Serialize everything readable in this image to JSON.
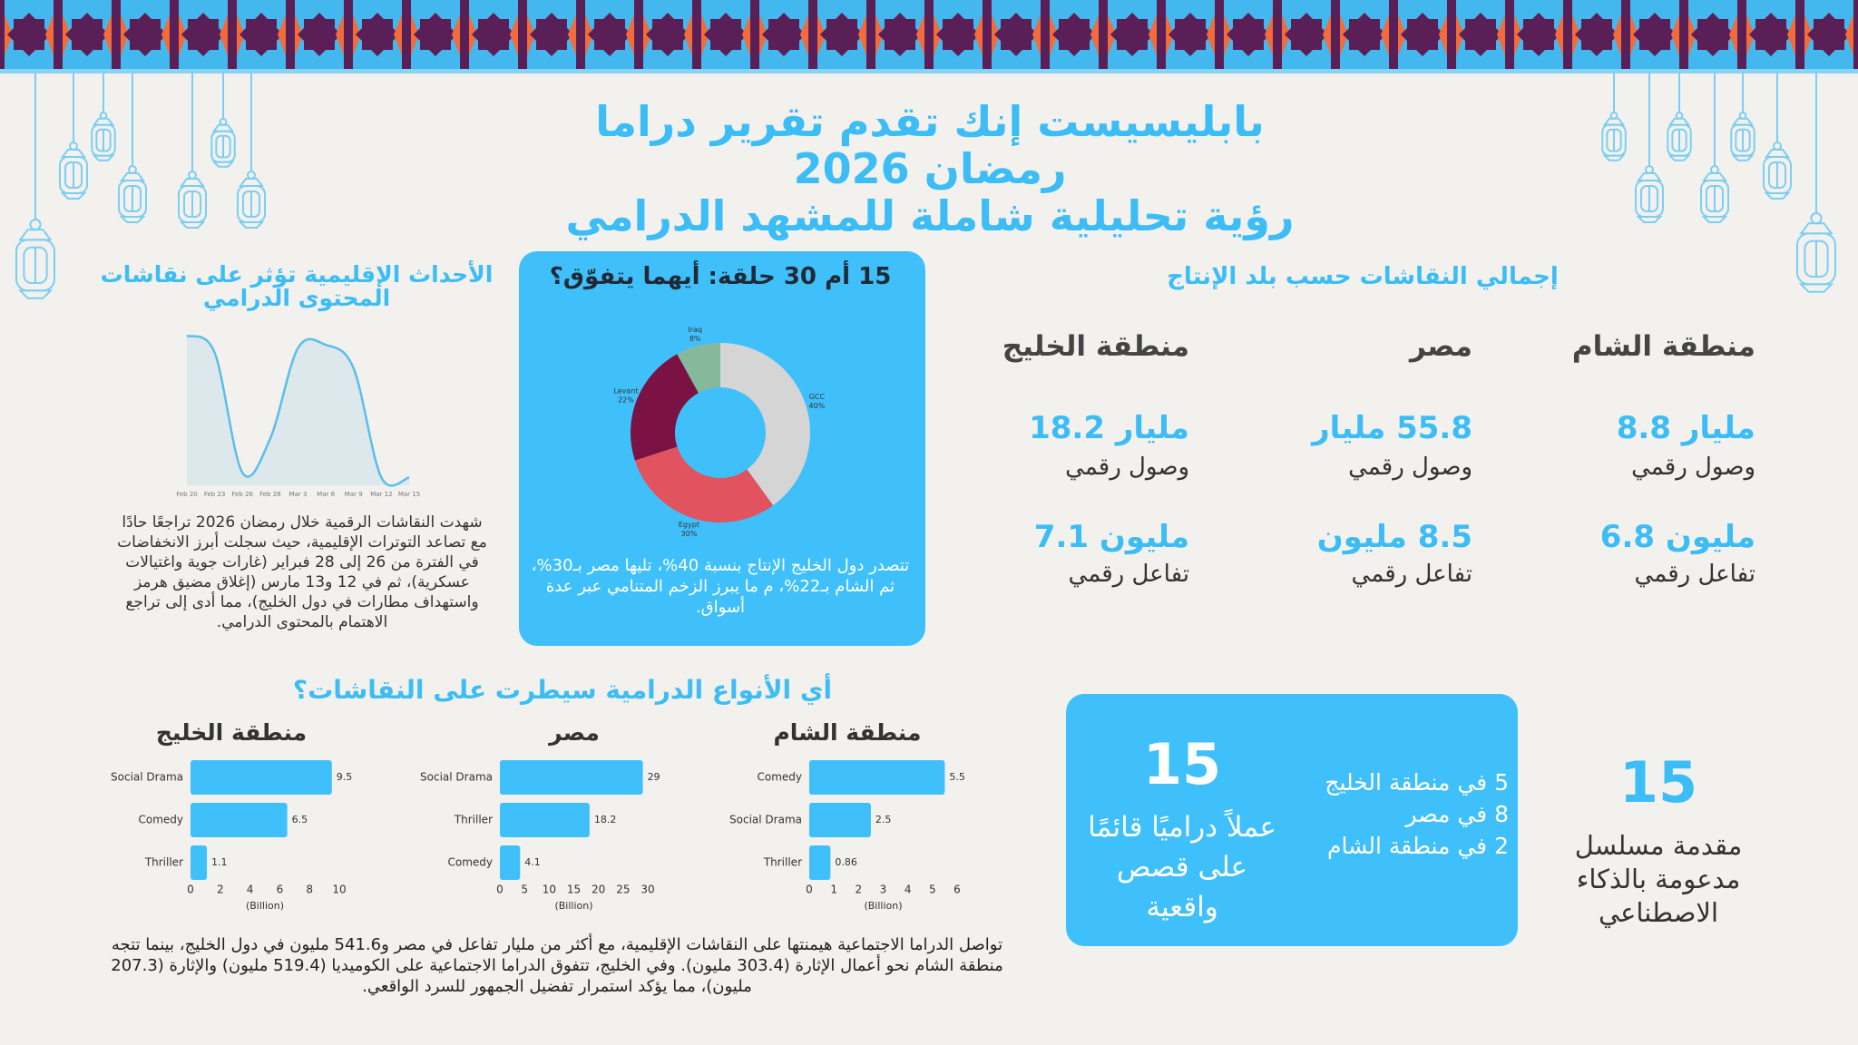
{
  "header": {
    "title_lines": [
      "بابليسيست إنك تقدم تقرير دراما",
      "رمضان 2026",
      "رؤية تحليلية شاملة للمشهد الدرامي"
    ]
  },
  "chart_data": [
    {
      "type": "area",
      "title": "الأحداث الإقليمية تؤثر على نقاشات المحتوى الدرامي",
      "x": [
        "Feb 20",
        "Feb 23",
        "Feb 26",
        "Feb 28",
        "Mar 3",
        "Mar 6",
        "Mar 9",
        "Mar 12",
        "Mar 15"
      ],
      "values": [
        96,
        85,
        8,
        30,
        88,
        90,
        75,
        5,
        5
      ],
      "ylim": [
        0,
        100
      ],
      "color": "#5bbfe8",
      "fill": "#dce8ec"
    },
    {
      "type": "pie",
      "donut": true,
      "title": "15 أم 30 حلقة: أيهما يتفوّق؟",
      "categories": [
        "GCC",
        "Egypt",
        "Levant",
        "Iraq"
      ],
      "values": [
        40,
        30,
        22,
        8
      ],
      "value_labels": [
        "40%",
        "30%",
        "22%",
        "8%"
      ],
      "colors": [
        "#d5d5d5",
        "#e0535f",
        "#7a1343",
        "#86b99b"
      ]
    },
    {
      "type": "barh",
      "title": "منطقة الشام",
      "categories": [
        "Comedy",
        "Social Drama",
        "Thriller"
      ],
      "values": [
        5.5,
        2.5,
        0.86
      ],
      "xlim": [
        0,
        6
      ],
      "xticks": [
        0,
        1,
        2,
        3,
        4,
        5,
        6
      ],
      "xlabel": "(Billion)",
      "color": "#40c0fb"
    },
    {
      "type": "barh",
      "title": "مصر",
      "categories": [
        "Social Drama",
        "Thriller",
        "Comedy"
      ],
      "values": [
        29,
        18.2,
        4.1
      ],
      "xlim": [
        0,
        30
      ],
      "xticks": [
        0,
        5,
        10,
        15,
        20,
        25,
        30
      ],
      "xlabel": "(Billion)",
      "color": "#40c0fb"
    },
    {
      "type": "barh",
      "title": "منطقة الخليج",
      "categories": [
        "Social Drama",
        "Comedy",
        "Thriller"
      ],
      "values": [
        9.5,
        6.5,
        1.1
      ],
      "xlim": [
        0,
        10
      ],
      "xticks": [
        0,
        2,
        4,
        6,
        8,
        10
      ],
      "xlabel": "(Billion)",
      "color": "#40c0fb"
    }
  ],
  "regional_events": {
    "text": "شهدت النقاشات الرقمية خلال رمضان 2026 تراجعًا حادًا مع تصاعد التوترات الإقليمية، حيث سجلت أبرز الانخفاضات في الفترة من 26 إلى 28 فبراير (غارات جوية واغتيالات عسكرية)، ثم في 12 و13 مارس (إغلاق مضيق هرمز واستهداف مطارات في دول الخليج)، مما أدى إلى تراجع الاهتمام بالمحتوى الدرامي."
  },
  "episodes": {
    "text": "تتصدر دول الخليج الإنتاج بنسبة 40%، تليها مصر بـ30%، ثم الشام بـ22%، م ما يبرز الزخم المتنامي عبر عدة أسواق."
  },
  "production": {
    "title": "إجمالي النقاشات حسب بلد الإنتاج",
    "regions": [
      {
        "name": "منطقة الشام",
        "reach": "مليار 8.8",
        "reach_label": "وصول رقمي",
        "engagement": "مليون 6.8",
        "engagement_label": "تفاعل رقمي"
      },
      {
        "name": "مصر",
        "reach": "55.8 مليار",
        "reach_label": "وصول رقمي",
        "engagement": "8.5 مليون",
        "engagement_label": "تفاعل رقمي"
      },
      {
        "name": "منطقة الخليج",
        "reach": "مليار 18.2",
        "reach_label": "وصول رقمي",
        "engagement": "مليون 7.1",
        "engagement_label": "تفاعل رقمي"
      }
    ]
  },
  "genres": {
    "title": "أي الأنواع الدرامية سيطرت على النقاشات؟",
    "text": "تواصل الدراما الاجتماعية هيمنتها على النقاشات الإقليمية، مع أكثر من مليار تفاعل في مصر و541.6 مليون في دول الخليج، بينما تتجه منطقة الشام نحو أعمال الإثارة (303.4 مليون). وفي الخليج، تتفوق الدراما الاجتماعية على الكوميديا (519.4 مليون) والإثارة (207.3 مليون)، مما يؤكد استمرار تفضيل الجمهور للسرد الواقعي."
  },
  "real_stories": {
    "number": "15",
    "label": "عملاً دراميًا قائمًا على قصص واقعية",
    "breakdown": [
      "5 في منطقة الخليج",
      "8 في مصر",
      "2 في منطقة الشام"
    ]
  },
  "ai_intros": {
    "number": "15",
    "label": "مقدمة مسلسل مدعومة بالذكاء الاصطناعي"
  }
}
